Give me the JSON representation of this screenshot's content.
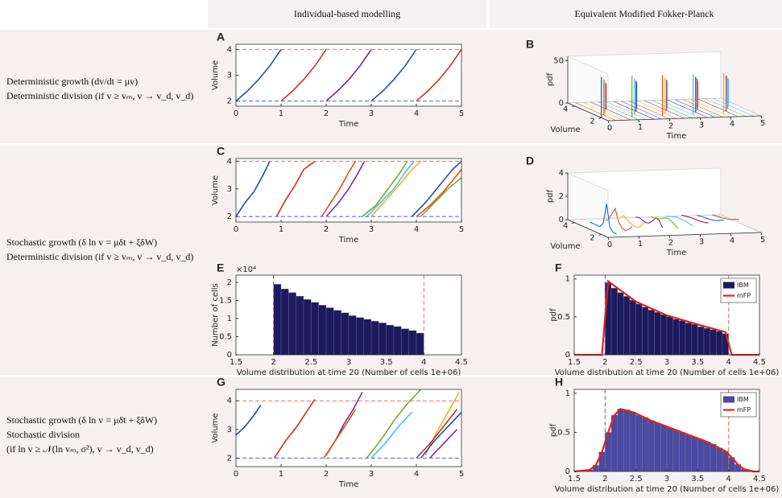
{
  "columns": [
    "Individual-based modelling",
    "Equivalent Modified Fokker-Planck"
  ],
  "rows": [
    {
      "lines": [
        "Deterministic growth (dv/dt = μv)",
        "Deterministic division (if v ≥ vₘ, v → v_d, v_d)"
      ]
    },
    {
      "lines": [
        "Stochastic growth (δ ln v = μδt + ξδW)",
        "Deterministic division (if v ≥ vₘ, v → v_d, v_d)"
      ]
    },
    {
      "lines": [
        "Stochastic growth (δ ln v = μδt + ξδW)",
        "Stochastic division",
        "(if ln v ≥ 𝒩(ln vₘ, σ²), v → v_d, v_d)"
      ]
    }
  ],
  "chart_data": [
    {
      "type": "line",
      "label": "A",
      "xlabel": "Time",
      "ylabel": "Volume",
      "xlim": [
        0,
        5
      ],
      "ylim": [
        1.8,
        4.2
      ],
      "xticks": [
        0,
        1,
        2,
        3,
        4,
        5
      ],
      "yticks": [
        2,
        3,
        4
      ],
      "hlines": [
        {
          "value": 2,
          "color": "#5a5ae0"
        },
        {
          "value": 4,
          "color": "#ee6a5a"
        }
      ],
      "traces": [
        {
          "color": "#1f4fa8",
          "x": [
            0,
            0.25,
            0.5,
            0.75,
            1
          ],
          "values": [
            2,
            2.38,
            2.83,
            3.36,
            4
          ]
        },
        {
          "color": "#c8321e",
          "x": [
            1,
            1.25,
            1.5,
            1.75,
            2
          ],
          "values": [
            2,
            2.38,
            2.83,
            3.36,
            4
          ]
        },
        {
          "color": "#6a2a8e",
          "x": [
            2,
            2.25,
            2.5,
            2.75,
            3
          ],
          "values": [
            2,
            2.38,
            2.83,
            3.36,
            4
          ]
        },
        {
          "color": "#1f4fa8",
          "x": [
            3,
            3.25,
            3.5,
            3.75,
            4
          ],
          "values": [
            2,
            2.38,
            2.83,
            3.36,
            4
          ]
        },
        {
          "color": "#c8321e",
          "x": [
            4,
            4.25,
            4.5,
            4.75,
            5
          ],
          "values": [
            2,
            2.38,
            2.83,
            3.36,
            4
          ]
        }
      ]
    },
    {
      "type": "surface3d",
      "label": "B",
      "xlabel": "Time",
      "vlabel": "Volume",
      "zlabel": "pdf",
      "xlim": [
        0,
        5
      ],
      "vlim": [
        1.5,
        4.5
      ],
      "zlim": [
        0,
        55
      ],
      "xticks": [
        0,
        1,
        2,
        3,
        4,
        5
      ],
      "vticks": [
        2,
        4
      ],
      "zticks": [
        0,
        50
      ],
      "x": [
        0,
        0.25,
        0.5,
        0.75,
        1,
        1.25,
        1.5,
        1.75,
        2,
        2.25,
        2.5,
        2.75,
        3,
        3.25,
        3.5,
        3.75,
        4,
        4.25,
        4.5,
        4.75
      ],
      "volumes": [
        2,
        2.38,
        2.83,
        3.36,
        2,
        2.38,
        2.83,
        3.36,
        2,
        2.38,
        2.83,
        3.36,
        2,
        2.38,
        2.83,
        3.36,
        2,
        2.38,
        2.83,
        3.36
      ],
      "values": [
        48,
        42,
        36,
        30,
        48,
        42,
        36,
        30,
        48,
        42,
        36,
        30,
        48,
        42,
        36,
        30,
        48,
        42,
        36,
        30
      ]
    },
    {
      "type": "line",
      "label": "C",
      "xlabel": "Time",
      "ylabel": "Volume",
      "xlim": [
        0,
        5
      ],
      "ylim": [
        1.8,
        4.1
      ],
      "xticks": [
        0,
        1,
        2,
        3,
        4,
        5
      ],
      "yticks": [
        2,
        3,
        4
      ],
      "hlines": [
        {
          "value": 2,
          "color": "#5a5ae0"
        },
        {
          "value": 4,
          "color": "#ee6a5a"
        }
      ],
      "traces": [
        {
          "color": "#1f4fa8",
          "x": [
            0,
            0.2,
            0.4,
            0.6,
            0.75
          ],
          "values": [
            2,
            2.5,
            2.9,
            3.5,
            4
          ]
        },
        {
          "color": "#c8321e",
          "x": [
            0.9,
            1.1,
            1.3,
            1.5,
            1.75
          ],
          "values": [
            2,
            2.6,
            3.1,
            3.7,
            4
          ]
        },
        {
          "color": "#d95319",
          "x": [
            1.9,
            2.1,
            2.3,
            2.5,
            2.65
          ],
          "values": [
            2,
            2.5,
            3.0,
            3.6,
            4
          ]
        },
        {
          "color": "#7e2f8e",
          "x": [
            2.0,
            2.25,
            2.5,
            2.7,
            2.85
          ],
          "values": [
            2,
            2.45,
            3,
            3.55,
            4
          ]
        },
        {
          "color": "#77ac30",
          "x": [
            2.8,
            3.1,
            3.35,
            3.6,
            3.8
          ],
          "values": [
            2,
            2.4,
            2.95,
            3.5,
            4
          ]
        },
        {
          "color": "#4dbeee",
          "x": [
            2.9,
            3.2,
            3.5,
            3.75,
            3.95
          ],
          "values": [
            2,
            2.5,
            3,
            3.6,
            4
          ]
        },
        {
          "color": "#edb120",
          "x": [
            3.0,
            3.3,
            3.6,
            3.9,
            4.1
          ],
          "values": [
            2,
            2.55,
            3.1,
            3.7,
            4
          ]
        },
        {
          "color": "#1f4fa8",
          "x": [
            3.9,
            4.2,
            4.5,
            4.8,
            5
          ],
          "values": [
            2,
            2.5,
            3.1,
            3.7,
            4
          ]
        },
        {
          "color": "#d95319",
          "x": [
            4.0,
            4.3,
            4.6,
            4.9,
            5
          ],
          "values": [
            2,
            2.4,
            2.9,
            3.5,
            3.7
          ]
        },
        {
          "color": "#77ac30",
          "x": [
            4.1,
            4.4,
            4.7,
            5
          ],
          "values": [
            2,
            2.5,
            3,
            3.4
          ]
        }
      ]
    },
    {
      "type": "surface3d",
      "label": "D",
      "xlabel": "Time",
      "vlabel": "Volume",
      "zlabel": "pdf",
      "xlim": [
        0,
        5
      ],
      "vlim": [
        1.5,
        4.5
      ],
      "zlim": [
        0,
        4
      ],
      "xticks": [
        0,
        1,
        2,
        3,
        4,
        5
      ],
      "vticks": [
        2,
        4
      ],
      "zticks": [
        0,
        2,
        4
      ],
      "x": [
        0.5,
        1,
        1.5,
        2,
        2.5,
        3,
        3.5,
        4,
        4.5
      ],
      "volumes": [
        2,
        2.25,
        2.5,
        2.75,
        3,
        3.25,
        3.5,
        3.75,
        4
      ],
      "slices": [
        [
          0,
          0,
          0.3,
          2.2,
          0.4,
          0,
          0,
          0,
          0
        ],
        [
          0.6,
          0.2,
          0,
          0.1,
          0.5,
          1.5,
          0.9,
          0.3,
          0.1
        ],
        [
          1.0,
          0.8,
          0.3,
          0.1,
          0.1,
          0.2,
          0.4,
          0.6,
          0.3
        ],
        [
          0.4,
          0.9,
          1.0,
          0.6,
          0.3,
          0.2,
          0.3,
          0.4,
          0.3
        ],
        [
          0.3,
          0.5,
          0.7,
          0.8,
          0.7,
          0.5,
          0.4,
          0.3,
          0.3
        ],
        [
          0.5,
          0.5,
          0.6,
          0.6,
          0.6,
          0.6,
          0.5,
          0.4,
          0.3
        ],
        [
          0.7,
          0.6,
          0.55,
          0.5,
          0.5,
          0.5,
          0.45,
          0.4,
          0.35
        ],
        [
          0.9,
          0.75,
          0.6,
          0.5,
          0.45,
          0.4,
          0.38,
          0.34,
          0.3
        ],
        [
          0.9,
          0.8,
          0.65,
          0.55,
          0.48,
          0.42,
          0.38,
          0.33,
          0.3
        ]
      ]
    },
    {
      "type": "histogram",
      "label": "E",
      "xlabel": "Volume distribution at time 20 (Number of cells 1e+06)",
      "ylabel": "Number of cells",
      "y_exponent_label": "×10⁴",
      "xlim": [
        1.5,
        4.5
      ],
      "ylim": [
        0,
        2.2
      ],
      "xticks": [
        1.5,
        2,
        2.5,
        3,
        3.5,
        4,
        4.5
      ],
      "yticks": [
        0,
        0.5,
        1,
        1.5,
        2
      ],
      "vlines": [
        {
          "value": 2,
          "color": "#5a5ae0"
        },
        {
          "value": 4,
          "color": "#ee6a5a"
        }
      ],
      "series": [
        {
          "type": "histogram",
          "color": "#1b1b5e",
          "bins": [
            2.0,
            2.1,
            2.2,
            2.3,
            2.4,
            2.5,
            2.6,
            2.7,
            2.8,
            2.9,
            3.0,
            3.1,
            3.2,
            3.3,
            3.4,
            3.5,
            3.6,
            3.7,
            3.8,
            3.9,
            4.0
          ],
          "values": [
            1.95,
            1.82,
            1.72,
            1.62,
            1.53,
            1.45,
            1.37,
            1.3,
            1.23,
            1.16,
            1.08,
            1.03,
            0.98,
            0.93,
            0.88,
            0.82,
            0.78,
            0.72,
            0.67,
            0.6
          ]
        }
      ]
    },
    {
      "type": "histogram",
      "label": "F",
      "xlabel": "Volume distribution at time 20 (Number of cells 1e+06)",
      "ylabel": "pdf",
      "legend": "upper right",
      "xlim": [
        1.5,
        4.5
      ],
      "ylim": [
        0,
        1.05
      ],
      "xticks": [
        1.5,
        2,
        2.5,
        3,
        3.5,
        4,
        4.5
      ],
      "yticks": [
        0,
        0.5,
        1
      ],
      "vlines": [
        {
          "value": 2,
          "color": "#5a5ae0"
        },
        {
          "value": 4,
          "color": "#ee6a5a"
        }
      ],
      "series": [
        {
          "type": "histogram",
          "name": "IBM",
          "color": "#1b1b5e",
          "bins": [
            2.0,
            2.1,
            2.2,
            2.3,
            2.4,
            2.5,
            2.6,
            2.7,
            2.8,
            2.9,
            3.0,
            3.1,
            3.2,
            3.3,
            3.4,
            3.5,
            3.6,
            3.7,
            3.8,
            3.9,
            4.0
          ],
          "values": [
            0.95,
            0.88,
            0.82,
            0.77,
            0.72,
            0.67,
            0.63,
            0.59,
            0.56,
            0.53,
            0.5,
            0.47,
            0.45,
            0.42,
            0.4,
            0.37,
            0.35,
            0.33,
            0.31,
            0.28
          ]
        },
        {
          "type": "line",
          "name": "mFP",
          "color": "#e0231c",
          "x": [
            1.5,
            1.95,
            2.0,
            2.05,
            2.5,
            3,
            3.5,
            3.95,
            4.0,
            4.05,
            4.5
          ],
          "values": [
            0,
            0,
            0.5,
            0.97,
            0.7,
            0.52,
            0.4,
            0.3,
            0.15,
            0,
            0
          ]
        }
      ]
    },
    {
      "type": "line",
      "label": "G",
      "xlabel": "Time",
      "ylabel": "Volume",
      "xlim": [
        0,
        5
      ],
      "ylim": [
        1.7,
        4.4
      ],
      "xticks": [
        0,
        1,
        2,
        3,
        4,
        5
      ],
      "yticks": [
        2,
        3,
        4
      ],
      "hlines": [
        {
          "value": 2,
          "color": "#5a5ae0"
        },
        {
          "value": 4,
          "color": "#ee6a5a"
        }
      ],
      "traces": [
        {
          "color": "#1f4fa8",
          "x": [
            0,
            0.2,
            0.4,
            0.55
          ],
          "values": [
            2.8,
            3.1,
            3.5,
            3.85
          ]
        },
        {
          "color": "#c8321e",
          "x": [
            0.85,
            1.1,
            1.35,
            1.6,
            1.75
          ],
          "values": [
            2,
            2.6,
            3.1,
            3.7,
            4.05
          ]
        },
        {
          "color": "#7e2f8e",
          "x": [
            2.0,
            2.2,
            2.4,
            2.6,
            2.8
          ],
          "values": [
            2.1,
            2.6,
            3.2,
            3.7,
            4.3
          ]
        },
        {
          "color": "#d95319",
          "x": [
            1.95,
            2.2,
            2.45,
            2.65
          ],
          "values": [
            2,
            2.6,
            3.2,
            3.7
          ]
        },
        {
          "color": "#77ac30",
          "x": [
            2.9,
            3.2,
            3.5,
            3.8,
            4.1
          ],
          "values": [
            2,
            2.6,
            3.3,
            3.9,
            4.4
          ]
        },
        {
          "color": "#4dbeee",
          "x": [
            3,
            3.3,
            3.6,
            3.9
          ],
          "values": [
            2,
            2.5,
            3.1,
            3.6
          ]
        },
        {
          "color": "#edb120",
          "x": [
            4.2,
            4.45,
            4.7,
            4.95
          ],
          "values": [
            2.1,
            2.9,
            3.6,
            4.3
          ]
        },
        {
          "color": "#1f4fa8",
          "x": [
            4.1,
            4.4,
            4.7,
            5
          ],
          "values": [
            2,
            2.6,
            3.1,
            3.6
          ]
        },
        {
          "color": "#c8321e",
          "x": [
            4.0,
            4.3,
            4.6,
            4.9
          ],
          "values": [
            2,
            2.5,
            3.1,
            3.7
          ]
        },
        {
          "color": "#7e2f8e",
          "x": [
            4.3,
            4.6,
            4.9
          ],
          "values": [
            2,
            2.5,
            3
          ]
        }
      ]
    },
    {
      "type": "histogram",
      "label": "H",
      "xlabel": "Volume distribution at time 20 (Number of cells 1e+06)",
      "ylabel": "pdf",
      "legend": "upper right",
      "xlim": [
        1.5,
        4.5
      ],
      "ylim": [
        0,
        1.05
      ],
      "xticks": [
        1.5,
        2,
        2.5,
        3,
        3.5,
        4,
        4.5
      ],
      "yticks": [
        0,
        0.5,
        1
      ],
      "vlines": [
        {
          "value": 2,
          "color": "#5a5ae0"
        },
        {
          "value": 4,
          "color": "#ee6a5a"
        }
      ],
      "series": [
        {
          "type": "histogram",
          "name": "IBM",
          "color": "#4a4aa0",
          "bins": [
            1.7,
            1.8,
            1.9,
            2.0,
            2.1,
            2.2,
            2.3,
            2.4,
            2.5,
            2.6,
            2.7,
            2.8,
            2.9,
            3.0,
            3.1,
            3.2,
            3.3,
            3.4,
            3.5,
            3.6,
            3.7,
            3.8,
            3.9,
            4.0,
            4.1,
            4.2,
            4.3,
            4.4
          ],
          "values": [
            0.02,
            0.08,
            0.25,
            0.5,
            0.72,
            0.8,
            0.79,
            0.76,
            0.72,
            0.69,
            0.65,
            0.62,
            0.59,
            0.56,
            0.53,
            0.5,
            0.47,
            0.44,
            0.41,
            0.38,
            0.35,
            0.3,
            0.26,
            0.18,
            0.09,
            0.03,
            0.01
          ]
        },
        {
          "type": "line",
          "name": "mFP",
          "color": "#e0231c",
          "x": [
            1.5,
            1.75,
            1.85,
            1.95,
            2.05,
            2.15,
            2.25,
            2.45,
            2.75,
            3.05,
            3.35,
            3.65,
            3.85,
            3.95,
            4.05,
            4.15,
            4.25,
            4.4,
            4.5
          ],
          "values": [
            0,
            0.02,
            0.08,
            0.25,
            0.5,
            0.72,
            0.8,
            0.76,
            0.65,
            0.56,
            0.47,
            0.38,
            0.3,
            0.26,
            0.18,
            0.09,
            0.03,
            0,
            0
          ]
        }
      ]
    }
  ]
}
